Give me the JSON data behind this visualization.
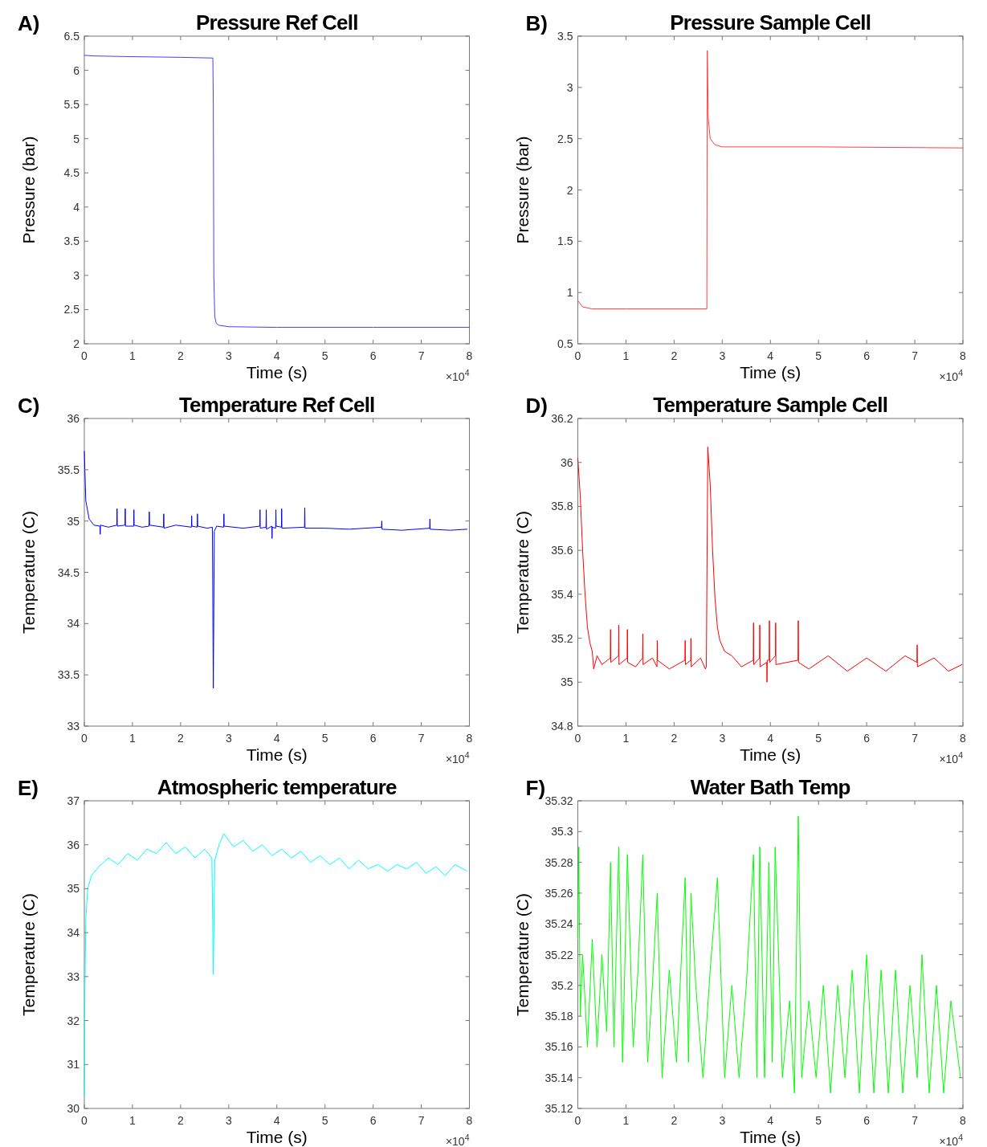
{
  "chart_data": [
    {
      "type": "line",
      "title": "Pressure Ref Cell",
      "xlabel": "Time (s)",
      "ylabel": "Pressure (bar)",
      "annotations": [
        "A)",
        "×10$^{4}$"
      ],
      "xlim": [
        0,
        8
      ],
      "xticks": [
        0,
        1,
        2,
        3,
        4,
        5,
        6,
        7,
        8
      ],
      "ylim": [
        2,
        6.5
      ],
      "yticks": [
        2,
        2.5,
        3,
        3.5,
        4,
        4.5,
        5,
        5.5,
        6,
        6.5
      ],
      "series": [
        {
          "color": "#4040ff",
          "x": [
            0,
            0.2,
            1,
            2,
            2.67,
            2.68,
            2.69,
            2.71,
            2.74,
            2.8,
            3,
            4,
            6,
            8
          ],
          "values": [
            6.22,
            6.21,
            6.2,
            6.19,
            6.18,
            5.5,
            3,
            2.4,
            2.3,
            2.27,
            2.25,
            2.24,
            2.24,
            2.24
          ]
        }
      ]
    },
    {
      "type": "line",
      "title": "Pressure Sample Cell",
      "xlabel": "Time (s)",
      "ylabel": "Pressure (bar)",
      "annotations": [
        "B)",
        "×10$^{4}$"
      ],
      "xlim": [
        0,
        8
      ],
      "xticks": [
        0,
        1,
        2,
        3,
        4,
        5,
        6,
        7,
        8
      ],
      "ylim": [
        0.5,
        3.5
      ],
      "yticks": [
        0.5,
        1,
        1.5,
        2,
        2.5,
        3,
        3.5
      ],
      "series": [
        {
          "color": "#ff4040",
          "x": [
            0,
            0.1,
            0.3,
            1,
            2.68,
            2.69,
            2.71,
            2.75,
            2.85,
            3,
            5,
            8
          ],
          "values": [
            0.92,
            0.86,
            0.84,
            0.84,
            0.84,
            3.36,
            2.7,
            2.5,
            2.44,
            2.42,
            2.42,
            2.41
          ]
        }
      ]
    },
    {
      "type": "line",
      "title": "Temperature Ref Cell",
      "xlabel": "Time (s)",
      "ylabel": "Temperature (C)",
      "annotations": [
        "C)",
        "×10$^{4}$"
      ],
      "xlim": [
        0,
        8
      ],
      "xticks": [
        0,
        1,
        2,
        3,
        4,
        5,
        6,
        7,
        8
      ],
      "ylim": [
        33,
        36
      ],
      "yticks": [
        33,
        33.5,
        34,
        34.5,
        35,
        35.5,
        36
      ],
      "series": [
        {
          "color": "#0000ff",
          "x": [
            0,
            0.03,
            0.1,
            0.2,
            0.325,
            0.33,
            0.335,
            0.5,
            0.675,
            0.68,
            0.685,
            0.845,
            0.85,
            0.855,
            1.025,
            1.03,
            1.035,
            1.2,
            1.345,
            1.35,
            1.355,
            1.645,
            1.65,
            1.655,
            1.9,
            2.225,
            2.23,
            2.235,
            2.345,
            2.35,
            2.355,
            2.55,
            2.66,
            2.68,
            2.7,
            2.75,
            2.895,
            2.9,
            2.905,
            3.3,
            3.645,
            3.65,
            3.655,
            3.775,
            3.78,
            3.785,
            3.895,
            3.9,
            3.905,
            3.975,
            3.98,
            3.985,
            4.095,
            4.1,
            4.105,
            4.575,
            4.58,
            4.585,
            5,
            5.5,
            6.175,
            6.18,
            6.185,
            6.6,
            7.175,
            7.18,
            7.185,
            7.6,
            7.95
          ],
          "values": [
            35.68,
            35.2,
            35.02,
            34.96,
            34.95,
            34.87,
            34.96,
            34.94,
            34.96,
            35.12,
            34.95,
            34.96,
            35.12,
            34.95,
            34.95,
            35.11,
            34.96,
            34.94,
            34.95,
            35.09,
            34.96,
            34.94,
            35.07,
            34.93,
            34.96,
            34.94,
            35.05,
            34.95,
            34.94,
            35.07,
            34.95,
            34.93,
            34.94,
            33.37,
            34.9,
            34.95,
            34.94,
            35.07,
            34.95,
            34.93,
            34.95,
            35.11,
            34.93,
            34.94,
            35.11,
            34.92,
            34.95,
            34.83,
            34.94,
            34.93,
            35.11,
            34.95,
            34.94,
            35.12,
            34.93,
            34.94,
            35.13,
            34.93,
            34.93,
            34.92,
            34.94,
            35.0,
            34.92,
            34.91,
            34.93,
            35.02,
            34.92,
            34.91,
            34.92
          ]
        }
      ]
    },
    {
      "type": "line",
      "title": "Temperature Sample Cell",
      "xlabel": "Time (s)",
      "ylabel": "Temperature (C)",
      "annotations": [
        "D)",
        "×10$^{4}$"
      ],
      "xlim": [
        0,
        8
      ],
      "xticks": [
        0,
        1,
        2,
        3,
        4,
        5,
        6,
        7,
        8
      ],
      "ylim": [
        34.8,
        36.2
      ],
      "yticks": [
        34.8,
        35,
        35.2,
        35.4,
        35.6,
        35.8,
        36,
        36.2
      ],
      "series": [
        {
          "color": "#ff0000",
          "x": [
            0,
            0.05,
            0.1,
            0.15,
            0.2,
            0.25,
            0.3,
            0.33,
            0.4,
            0.5,
            0.675,
            0.68,
            0.685,
            0.845,
            0.85,
            0.855,
            1.025,
            1.03,
            1.035,
            1.2,
            1.345,
            1.35,
            1.355,
            1.55,
            1.645,
            1.65,
            1.655,
            1.9,
            2.225,
            2.23,
            2.235,
            2.345,
            2.35,
            2.355,
            2.55,
            2.65,
            2.67,
            2.7,
            2.75,
            2.8,
            2.85,
            2.9,
            2.95,
            3.05,
            3.2,
            3.4,
            3.645,
            3.65,
            3.655,
            3.775,
            3.78,
            3.785,
            3.925,
            3.93,
            3.935,
            3.975,
            3.98,
            3.985,
            4.105,
            4.11,
            4.115,
            4.575,
            4.58,
            4.585,
            4.8,
            5.2,
            5.6,
            6,
            6.4,
            6.8,
            7.045,
            7.05,
            7.055,
            7.4,
            7.7,
            7.98
          ],
          "values": [
            36.02,
            35.85,
            35.6,
            35.4,
            35.25,
            35.18,
            35.14,
            35.06,
            35.12,
            35.08,
            35.11,
            35.24,
            35.09,
            35.12,
            35.26,
            35.08,
            35.11,
            35.24,
            35.09,
            35.07,
            35.11,
            35.22,
            35.08,
            35.11,
            35.07,
            35.19,
            35.1,
            35.06,
            35.1,
            35.19,
            35.08,
            35.1,
            35.2,
            35.07,
            35.11,
            35.06,
            35.07,
            36.07,
            35.9,
            35.6,
            35.38,
            35.25,
            35.19,
            35.14,
            35.12,
            35.07,
            35.1,
            35.27,
            35.08,
            35.11,
            35.26,
            35.07,
            35.09,
            35.0,
            35.1,
            35.1,
            35.28,
            35.09,
            35.12,
            35.27,
            35.08,
            35.1,
            35.28,
            35.09,
            35.06,
            35.12,
            35.05,
            35.11,
            35.05,
            35.12,
            35.09,
            35.17,
            35.07,
            35.11,
            35.05,
            35.08
          ]
        }
      ]
    },
    {
      "type": "line",
      "title": "Atmospheric temperature",
      "xlabel": "Time (s)",
      "ylabel": "Temperature (C)",
      "annotations": [
        "E)",
        "×10$^{4}$"
      ],
      "xlim": [
        0,
        8
      ],
      "xticks": [
        0,
        1,
        2,
        3,
        4,
        5,
        6,
        7,
        8
      ],
      "ylim": [
        30,
        37
      ],
      "yticks": [
        30,
        31,
        32,
        33,
        34,
        35,
        36,
        37
      ],
      "series": [
        {
          "color": "#00ffff",
          "x": [
            0,
            0.01,
            0.03,
            0.07,
            0.15,
            0.3,
            0.5,
            0.7,
            0.9,
            1.1,
            1.3,
            1.5,
            1.7,
            1.9,
            2.1,
            2.3,
            2.5,
            2.65,
            2.68,
            2.71,
            2.8,
            2.9,
            3.1,
            3.3,
            3.5,
            3.7,
            3.9,
            4.1,
            4.3,
            4.5,
            4.7,
            4.9,
            5.1,
            5.3,
            5.5,
            5.7,
            5.9,
            6.1,
            6.3,
            6.5,
            6.7,
            6.9,
            7.1,
            7.3,
            7.5,
            7.7,
            7.95
          ],
          "values": [
            30.3,
            32.5,
            34.3,
            35.0,
            35.3,
            35.5,
            35.7,
            35.55,
            35.8,
            35.65,
            35.9,
            35.8,
            36.05,
            35.8,
            35.95,
            35.7,
            35.9,
            35.7,
            33.05,
            35.65,
            36.0,
            36.25,
            35.95,
            36.1,
            35.85,
            36.0,
            35.75,
            35.9,
            35.7,
            35.85,
            35.6,
            35.75,
            35.55,
            35.7,
            35.45,
            35.65,
            35.45,
            35.55,
            35.4,
            35.55,
            35.45,
            35.6,
            35.35,
            35.5,
            35.3,
            35.55,
            35.4
          ]
        }
      ]
    },
    {
      "type": "line",
      "title": "Water Bath Temp",
      "xlabel": "Time (s)",
      "ylabel": "Temperature (C)",
      "annotations": [
        "F)",
        "×10$^{4}$"
      ],
      "xlim": [
        0,
        8
      ],
      "xticks": [
        0,
        1,
        2,
        3,
        4,
        5,
        6,
        7,
        8
      ],
      "ylim": [
        35.12,
        35.32
      ],
      "yticks": [
        35.12,
        35.14,
        35.16,
        35.18,
        35.2,
        35.22,
        35.24,
        35.26,
        35.28,
        35.3,
        35.32
      ],
      "series": [
        {
          "color": "#00ff00",
          "x": [
            0,
            0.02,
            0.05,
            0.1,
            0.2,
            0.3,
            0.4,
            0.5,
            0.6,
            0.68,
            0.75,
            0.85,
            0.93,
            1.03,
            1.15,
            1.25,
            1.35,
            1.45,
            1.55,
            1.65,
            1.75,
            1.9,
            2.05,
            2.23,
            2.3,
            2.35,
            2.45,
            2.6,
            2.75,
            2.9,
            3.05,
            3.2,
            3.35,
            3.5,
            3.65,
            3.72,
            3.78,
            3.88,
            3.97,
            4.04,
            4.1,
            4.25,
            4.4,
            4.5,
            4.58,
            4.65,
            4.8,
            4.95,
            5.1,
            5.25,
            5.4,
            5.55,
            5.7,
            5.85,
            6,
            6.15,
            6.3,
            6.45,
            6.6,
            6.75,
            6.9,
            7.05,
            7.15,
            7.3,
            7.45,
            7.6,
            7.75,
            7.95
          ],
          "values": [
            35.23,
            35.29,
            35.18,
            35.22,
            35.16,
            35.23,
            35.16,
            35.22,
            35.17,
            35.28,
            35.16,
            35.29,
            35.15,
            35.285,
            35.16,
            35.21,
            35.285,
            35.15,
            35.2,
            35.26,
            35.14,
            35.21,
            35.15,
            35.27,
            35.15,
            35.26,
            35.2,
            35.14,
            35.21,
            35.27,
            35.14,
            35.2,
            35.14,
            35.2,
            35.285,
            35.14,
            35.29,
            35.14,
            35.28,
            35.15,
            35.29,
            35.14,
            35.19,
            35.13,
            35.31,
            35.14,
            35.19,
            35.14,
            35.2,
            35.13,
            35.2,
            35.14,
            35.21,
            35.13,
            35.22,
            35.13,
            35.21,
            35.13,
            35.21,
            35.13,
            35.2,
            35.14,
            35.22,
            35.13,
            35.2,
            35.13,
            35.19,
            35.14
          ]
        }
      ]
    }
  ]
}
